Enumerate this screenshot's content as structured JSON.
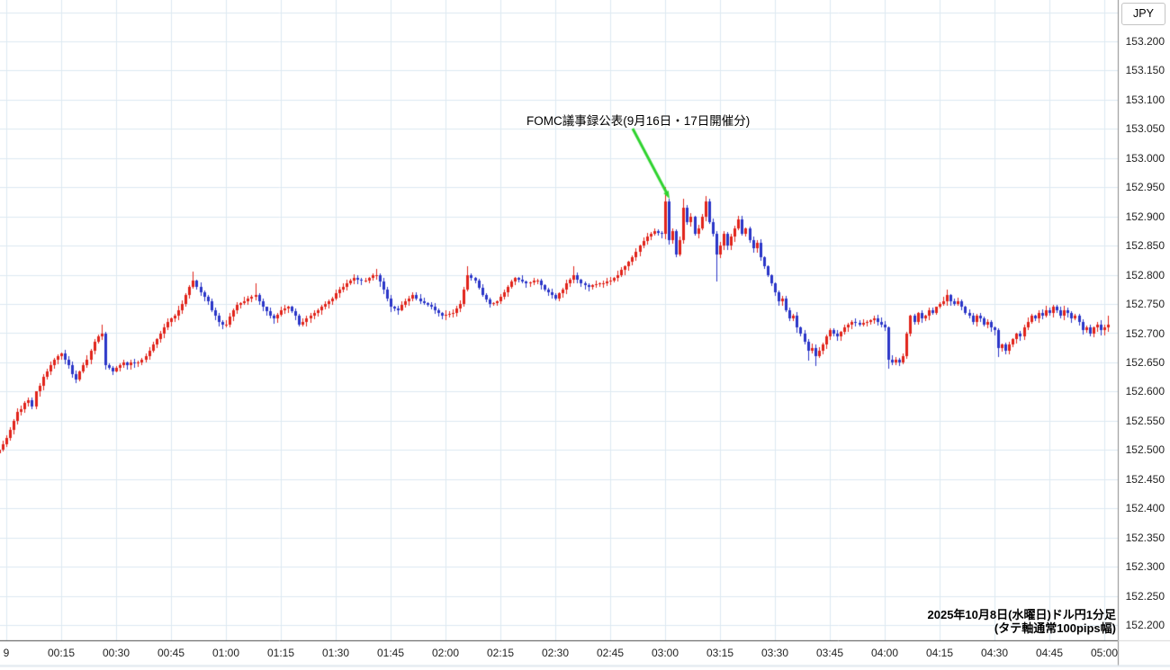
{
  "window": {
    "currency_label": "JPY"
  },
  "annotation": {
    "text": "FOMC議事録公表(9月16日・17日開催分)",
    "arrow_color": "#2fd32f"
  },
  "caption": {
    "line1": "2025年10月8日(水曜日)ドル円1分足",
    "line2": "(タテ軸通常100pips幅)"
  },
  "axes": {
    "y_labels": [
      "153.200",
      "153.150",
      "153.100",
      "153.050",
      "153.000",
      "152.950",
      "152.900",
      "152.850",
      "152.800",
      "152.750",
      "152.700",
      "152.650",
      "152.600",
      "152.550",
      "152.500",
      "152.450",
      "152.400",
      "152.350",
      "152.300",
      "152.250",
      "152.200"
    ],
    "x_labels": [
      "9",
      "00:15",
      "00:30",
      "00:45",
      "01:00",
      "01:15",
      "01:30",
      "01:45",
      "02:00",
      "02:15",
      "02:30",
      "02:45",
      "03:00",
      "03:15",
      "03:30",
      "03:45",
      "04:00",
      "04:15",
      "04:30",
      "04:45",
      "05:00"
    ]
  },
  "chart_data": {
    "type": "candlestick",
    "title": "USD/JPY 1-minute candles, 2025-10-08 (Wed)",
    "symbol": "JPY",
    "interval_minutes": 1,
    "ylim": [
      152.2,
      153.2
    ],
    "y_step": 0.05,
    "x_start_time": "23:58",
    "x_end_time": "05:01",
    "grid": true,
    "colors": {
      "up": "#e1231a",
      "down": "#2a35c8",
      "grid": "#dde9f2",
      "axis_line": "#4a4a4a",
      "axis_border": "#8a8a8a",
      "bottom_rule": "#dfe7ee"
    },
    "annotation_event": {
      "label": "FOMC議事録公表(9月16日・17日開催分)",
      "time": "03:00",
      "price": 152.935
    },
    "first_open": 152.495,
    "closes": [
      152.5,
      152.51,
      152.52,
      152.535,
      152.55,
      152.565,
      152.57,
      152.58,
      152.585,
      152.575,
      152.6,
      152.61,
      152.625,
      152.635,
      152.645,
      152.655,
      152.66,
      152.665,
      152.655,
      152.645,
      152.63,
      152.62,
      152.635,
      152.645,
      152.655,
      152.67,
      152.685,
      152.695,
      152.7,
      152.645,
      152.64,
      152.635,
      152.64,
      152.645,
      152.65,
      152.645,
      152.65,
      152.648,
      152.65,
      152.655,
      152.66,
      152.67,
      152.68,
      152.69,
      152.7,
      152.71,
      152.72,
      152.725,
      152.73,
      152.74,
      152.75,
      152.765,
      152.78,
      152.79,
      152.78,
      152.77,
      152.762,
      152.755,
      152.74,
      152.73,
      152.72,
      152.715,
      152.715,
      152.728,
      152.74,
      152.748,
      152.752,
      152.755,
      152.76,
      152.762,
      152.765,
      152.755,
      152.745,
      152.738,
      152.73,
      152.725,
      152.732,
      152.74,
      152.742,
      152.745,
      152.738,
      152.73,
      152.715,
      152.72,
      152.725,
      152.73,
      152.735,
      152.74,
      152.745,
      152.75,
      152.755,
      152.76,
      152.768,
      152.775,
      152.78,
      152.785,
      152.79,
      152.795,
      152.792,
      152.79,
      152.79,
      152.795,
      152.8,
      152.8,
      152.788,
      152.775,
      152.76,
      152.745,
      152.742,
      152.74,
      152.748,
      152.755,
      152.76,
      152.765,
      152.76,
      152.755,
      152.752,
      152.748,
      152.745,
      152.74,
      152.735,
      152.73,
      152.732,
      152.733,
      152.735,
      152.742,
      152.75,
      152.775,
      152.8,
      152.795,
      152.79,
      152.778,
      152.765,
      152.758,
      152.75,
      152.752,
      152.755,
      152.762,
      152.77,
      152.78,
      152.788,
      152.795,
      152.792,
      152.788,
      152.785,
      152.787,
      152.79,
      152.79,
      152.782,
      152.775,
      152.77,
      152.765,
      152.76,
      152.768,
      152.775,
      152.785,
      152.792,
      152.8,
      152.792,
      152.785,
      152.782,
      152.78,
      152.782,
      152.784,
      152.785,
      152.786,
      152.788,
      152.79,
      152.795,
      152.8,
      152.808,
      152.815,
      152.822,
      152.83,
      152.84,
      152.85,
      152.858,
      152.865,
      152.87,
      152.875,
      152.872,
      152.87,
      152.925,
      152.86,
      152.875,
      152.835,
      152.86,
      152.915,
      152.89,
      152.9,
      152.87,
      152.88,
      152.9,
      152.925,
      152.89,
      152.87,
      152.835,
      152.85,
      152.87,
      152.85,
      152.865,
      152.88,
      152.895,
      152.87,
      152.88,
      152.86,
      152.845,
      152.855,
      152.83,
      152.815,
      152.8,
      152.785,
      152.77,
      152.755,
      152.76,
      152.74,
      152.725,
      152.73,
      152.71,
      152.7,
      152.685,
      152.67,
      152.675,
      152.66,
      152.67,
      152.68,
      152.695,
      152.705,
      152.7,
      152.695,
      152.702,
      152.71,
      152.715,
      152.72,
      152.718,
      152.715,
      152.718,
      152.72,
      152.722,
      152.725,
      152.72,
      152.715,
      152.71,
      152.655,
      152.65,
      152.655,
      152.65,
      152.66,
      152.7,
      152.73,
      152.72,
      152.735,
      152.725,
      152.73,
      152.74,
      152.735,
      152.745,
      152.75,
      152.755,
      152.765,
      152.755,
      152.75,
      152.755,
      152.745,
      152.735,
      152.73,
      152.72,
      152.73,
      152.725,
      152.715,
      152.72,
      152.71,
      152.705,
      152.675,
      152.68,
      152.67,
      152.68,
      152.69,
      152.7,
      152.695,
      152.71,
      152.72,
      152.73,
      152.725,
      152.735,
      152.73,
      152.74,
      152.735,
      152.745,
      152.74,
      152.73,
      152.74,
      152.735,
      152.725,
      152.73,
      152.72,
      152.705,
      152.71,
      152.7,
      152.71,
      152.715,
      152.705,
      152.71,
      152.715
    ],
    "wick_overrides": {
      "0": {
        "low": 152.49
      },
      "28": {
        "high": 152.715
      },
      "53": {
        "high": 152.805
      },
      "70": {
        "high": 152.785
      },
      "103": {
        "high": 152.81
      },
      "128": {
        "high": 152.815
      },
      "157": {
        "high": 152.815
      },
      "182": {
        "high": 152.95
      },
      "187": {
        "high": 152.93
      },
      "193": {
        "high": 152.935
      },
      "196": {
        "low": 152.79
      },
      "221": {
        "low": 152.655
      },
      "223": {
        "low": 152.645
      },
      "243": {
        "low": 152.64
      },
      "259": {
        "high": 152.775
      },
      "273": {
        "low": 152.66
      },
      "303": {
        "high": 152.73
      }
    }
  }
}
